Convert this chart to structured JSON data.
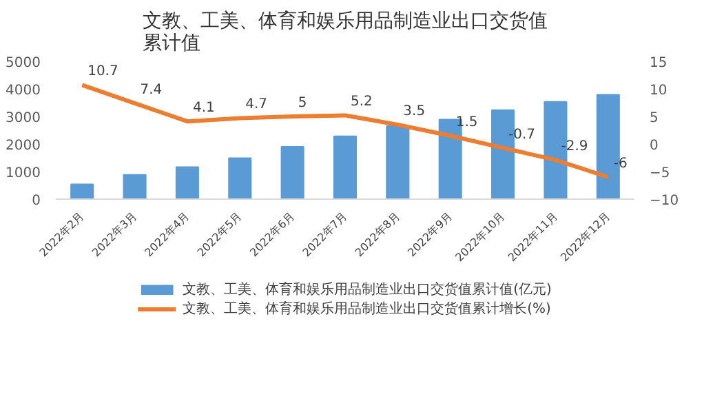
{
  "chart_data": {
    "type": "bar",
    "title": "文教、工美、体育和娱乐用品制造业出口交货值累计值",
    "categories": [
      "2022年2月",
      "2022年3月",
      "2022年4月",
      "2022年5月",
      "2022年6月",
      "2022年7月",
      "2022年8月",
      "2022年9月",
      "2022年10月",
      "2022年11月",
      "2022年12月"
    ],
    "series": [
      {
        "name": "文教、工美、体育和娱乐用品制造业出口交货值累计值(亿元)",
        "color": "#5b9bd5",
        "values": [
          540,
          880,
          1160,
          1490,
          1900,
          2280,
          2650,
          2890,
          3230,
          3530,
          3790
        ]
      },
      {
        "name": "文教、工美、体育和娱乐用品制造业出口交货值累计增长(%)",
        "type": "line",
        "axis": "y2",
        "color": "#ed7d31",
        "values": [
          10.7,
          7.4,
          4.1,
          4.7,
          5,
          5.2,
          3.5,
          1.5,
          -0.7,
          -2.9,
          -6
        ],
        "value_labels": [
          "10.7",
          "7.4",
          "4.1",
          "4.7",
          "5",
          "5.2",
          "3.5",
          "1.5",
          "-0.7",
          "-2.9",
          "-6"
        ]
      }
    ],
    "ylim": [
      0,
      5000
    ],
    "yticks": [
      0,
      1000,
      2000,
      3000,
      4000,
      5000
    ],
    "y2lim": [
      -10,
      15
    ],
    "y2ticks": [
      -10,
      -5,
      0,
      5,
      10,
      15
    ],
    "grid": false,
    "legend": "bottom"
  }
}
